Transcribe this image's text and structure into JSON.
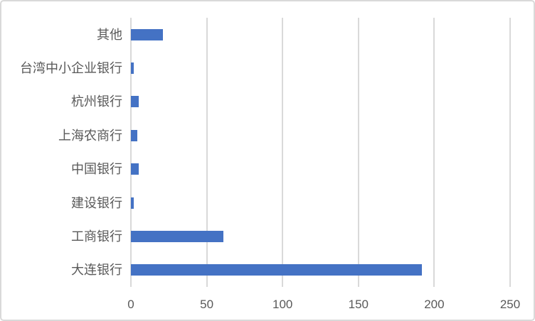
{
  "chart_data": {
    "type": "bar",
    "orientation": "horizontal",
    "title": "",
    "xlabel": "",
    "ylabel": "",
    "categories_top_to_bottom": [
      "其他",
      "台湾中小企业银行",
      "杭州银行",
      "上海农商行",
      "中国银行",
      "建设银行",
      "工商银行",
      "大连银行"
    ],
    "values": [
      21,
      2,
      5,
      4,
      5,
      2,
      61,
      192
    ],
    "x_ticks": [
      0,
      50,
      100,
      150,
      200,
      250
    ],
    "xlim": [
      0,
      250
    ],
    "grid": "vertical",
    "legend": "none",
    "colors": {
      "bar": "#4472c4",
      "gridline": "#d9d9d9",
      "axis_text": "#595959",
      "frame_border": "#d9d9d9",
      "background": "#ffffff"
    }
  }
}
